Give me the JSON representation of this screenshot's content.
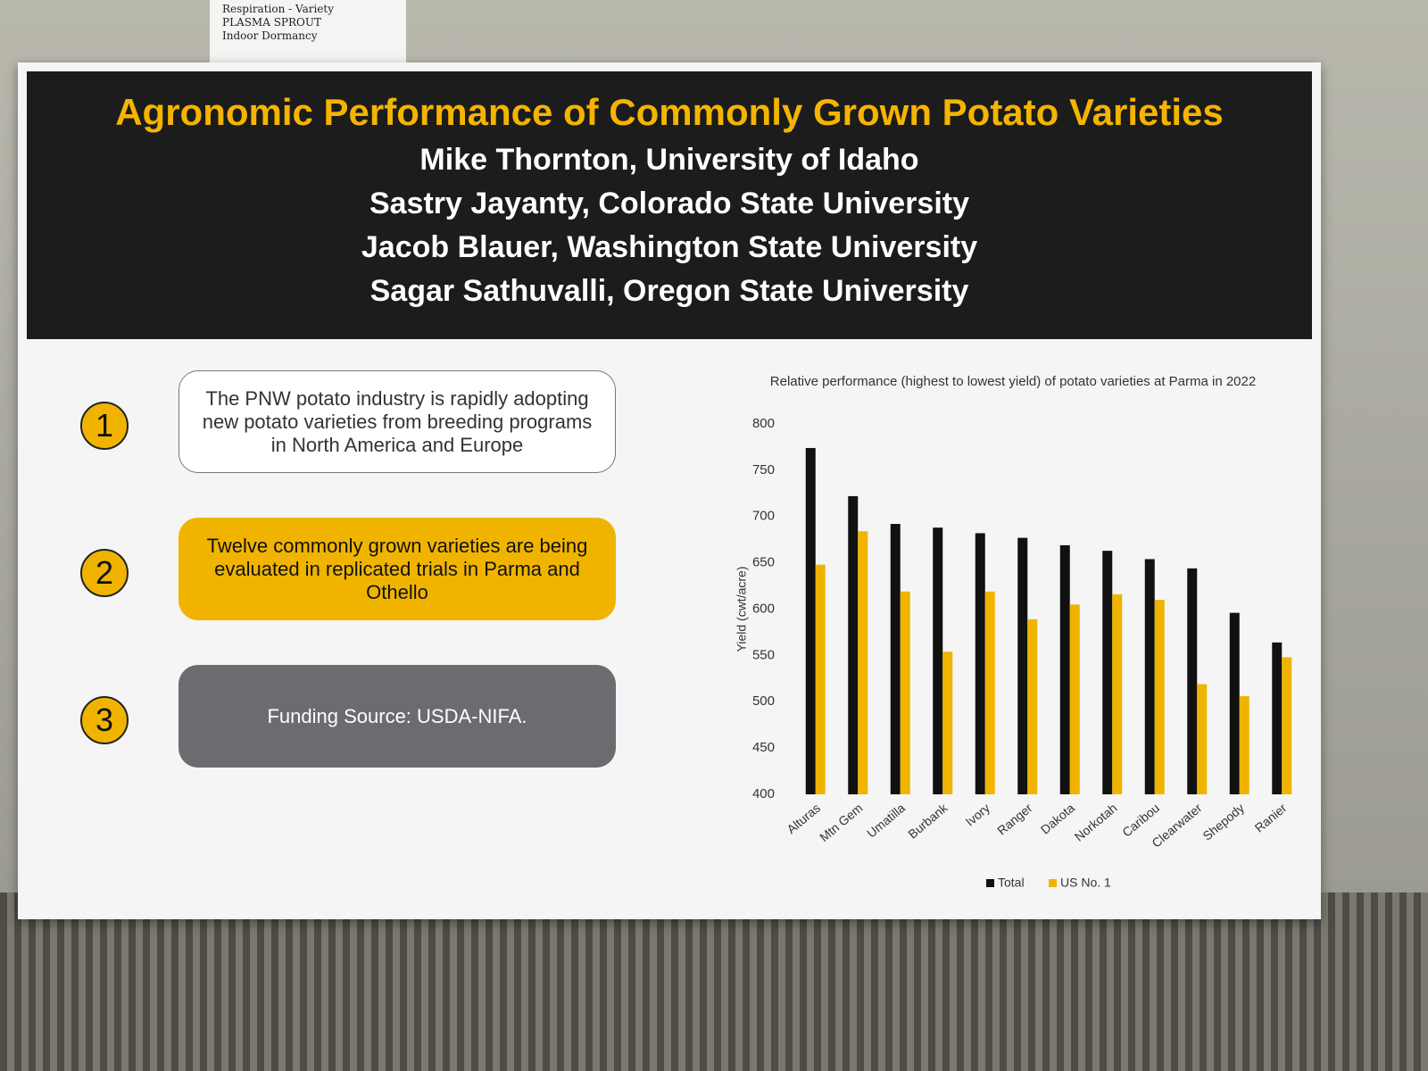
{
  "background_notes": [
    "Respiration - Variety",
    "PLASMA SPROUT",
    "Indoor Dormancy"
  ],
  "header": {
    "title": "Agronomic Performance of Commonly Grown Potato Varieties",
    "authors": [
      "Mike Thornton, University of Idaho",
      "Sastry Jayanty, Colorado State University",
      "Jacob Blauer, Washington State University",
      "Sagar Sathuvalli, Oregon State University"
    ]
  },
  "points": [
    {
      "number": "1",
      "text": "The PNW potato industry is rapidly adopting new potato varieties from breeding programs in North America and Europe"
    },
    {
      "number": "2",
      "text": "Twelve commonly grown varieties are being evaluated in replicated trials in Parma and Othello"
    },
    {
      "number": "3",
      "text": "Funding Source: USDA-NIFA."
    }
  ],
  "chart_data": {
    "type": "bar",
    "title": "Relative performance (highest to lowest yield) of potato varieties at Parma in 2022",
    "y_label": "Yield (cwt/acre)",
    "categories": [
      "Alturas",
      "Mtn Gem",
      "Umatilla",
      "Burbank",
      "Ivory",
      "Ranger",
      "Dakota",
      "Norkotah",
      "Caribou",
      "Clearwater",
      "Shepody",
      "Ranier"
    ],
    "series": [
      {
        "name": "Total",
        "color": "#111111",
        "values": [
          774,
          722,
          692,
          688,
          682,
          677,
          669,
          663,
          654,
          644,
          596,
          564
        ]
      },
      {
        "name": "US No. 1",
        "color": "#f0b400",
        "values": [
          648,
          684,
          619,
          554,
          619,
          589,
          605,
          616,
          610,
          519,
          506,
          548
        ]
      }
    ],
    "ylim": [
      400,
      800
    ],
    "yticks": [
      400,
      450,
      500,
      550,
      600,
      650,
      700,
      750,
      800
    ],
    "grid": false,
    "legend": "bottom"
  }
}
